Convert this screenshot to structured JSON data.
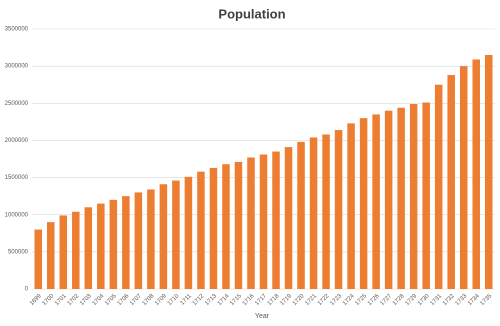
{
  "chart_data": {
    "type": "bar",
    "title": "Population",
    "x_label": "Year",
    "categories": [
      "1699",
      "1700",
      "1701",
      "1702",
      "1703",
      "1704",
      "1705",
      "1706",
      "1707",
      "1708",
      "1709",
      "1710",
      "1711",
      "1712",
      "1713",
      "1714",
      "1715",
      "1716",
      "1717",
      "1718",
      "1719",
      "1720",
      "1721",
      "1722",
      "1723",
      "1724",
      "1725",
      "1726",
      "1727",
      "1728",
      "1729",
      "1730",
      "1731",
      "1732",
      "1733",
      "1734",
      "1735"
    ],
    "values": [
      800000,
      900000,
      990000,
      1040000,
      1100000,
      1150000,
      1200000,
      1250000,
      1300000,
      1340000,
      1410000,
      1460000,
      1510000,
      1580000,
      1630000,
      1680000,
      1710000,
      1770000,
      1810000,
      1850000,
      1910000,
      1980000,
      2040000,
      2080000,
      2140000,
      2230000,
      2300000,
      2350000,
      2400000,
      2440000,
      2490000,
      2510000,
      2750000,
      2880000,
      3000000,
      3090000,
      3150000
    ],
    "color": "#ed7d31",
    "ylim": [
      0,
      3500000
    ],
    "yticks": [
      0,
      500000,
      1000000,
      1500000,
      2000000,
      2500000,
      3000000,
      3500000
    ],
    "grid": true
  }
}
